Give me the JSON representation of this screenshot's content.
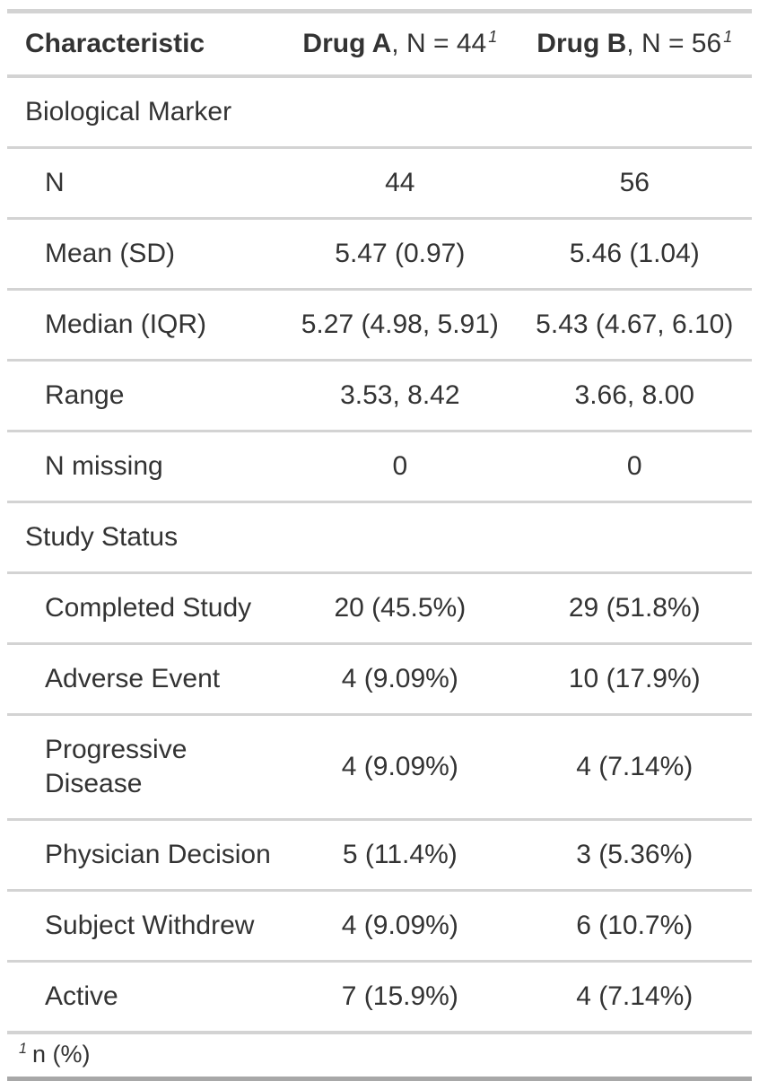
{
  "chart_data": {
    "type": "table",
    "title": "Summary table comparing Drug A and Drug B",
    "columns": [
      "Characteristic",
      "Drug A, N = 44",
      "Drug B, N = 56"
    ],
    "header": {
      "characteristic": "Characteristic",
      "drug_a": {
        "name": "Drug A",
        "suffix": ", N = 44",
        "footnote_marker": "1"
      },
      "drug_b": {
        "name": "Drug B",
        "suffix": ", N = 56",
        "footnote_marker": "1"
      }
    },
    "rows": [
      {
        "label": "Biological Marker",
        "group": true,
        "drug_a": "",
        "drug_b": ""
      },
      {
        "label": "N",
        "group": false,
        "drug_a": "44",
        "drug_b": "56"
      },
      {
        "label": "Mean (SD)",
        "group": false,
        "drug_a": "5.47 (0.97)",
        "drug_b": "5.46 (1.04)"
      },
      {
        "label": "Median (IQR)",
        "group": false,
        "drug_a": "5.27 (4.98, 5.91)",
        "drug_b": "5.43 (4.67, 6.10)"
      },
      {
        "label": "Range",
        "group": false,
        "drug_a": "3.53, 8.42",
        "drug_b": "3.66, 8.00"
      },
      {
        "label": "N missing",
        "group": false,
        "drug_a": "0",
        "drug_b": "0"
      },
      {
        "label": "Study Status",
        "group": true,
        "drug_a": "",
        "drug_b": ""
      },
      {
        "label": "Completed Study",
        "group": false,
        "drug_a": "20 (45.5%)",
        "drug_b": "29 (51.8%)"
      },
      {
        "label": "Adverse Event",
        "group": false,
        "drug_a": "4 (9.09%)",
        "drug_b": "10 (17.9%)"
      },
      {
        "label": "Progressive Disease",
        "group": false,
        "drug_a": "4 (9.09%)",
        "drug_b": "4 (7.14%)"
      },
      {
        "label": "Physician Decision",
        "group": false,
        "drug_a": "5 (11.4%)",
        "drug_b": "3 (5.36%)"
      },
      {
        "label": "Subject Withdrew",
        "group": false,
        "drug_a": "4 (9.09%)",
        "drug_b": "6 (10.7%)"
      },
      {
        "label": "Active",
        "group": false,
        "drug_a": "7 (15.9%)",
        "drug_b": "4 (7.14%)"
      }
    ],
    "footnote": {
      "marker": "1",
      "text": "n (%)"
    },
    "layout": {
      "grid": "horizontal rules between rows",
      "legend": "none"
    }
  },
  "colors": {
    "text": "#333333",
    "line_light": "#D3D3D3",
    "line_dark": "#A8A8A8",
    "background": "#FFFFFF"
  }
}
